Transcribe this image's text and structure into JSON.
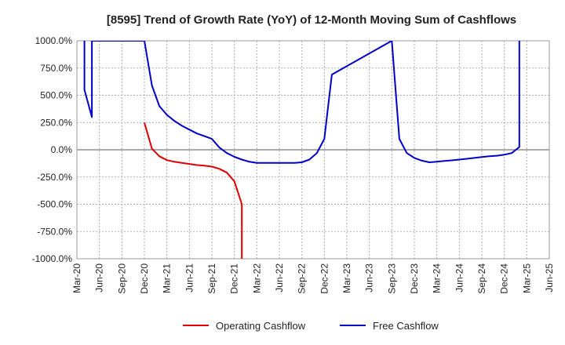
{
  "chart_data": {
    "type": "line",
    "title": "[8595]  Trend of Growth Rate (YoY) of 12-Month Moving Sum of Cashflows",
    "xlabel": "",
    "ylabel": "",
    "ylim": [
      -1000,
      1000
    ],
    "yticks": [
      {
        "value": 1000,
        "label": "1000.0%"
      },
      {
        "value": 750,
        "label": "750.0%"
      },
      {
        "value": 500,
        "label": "500.0%"
      },
      {
        "value": 250,
        "label": "250.0%"
      },
      {
        "value": 0,
        "label": "0.0%"
      },
      {
        "value": -250,
        "label": "-250.0%"
      },
      {
        "value": -500,
        "label": "-500.0%"
      },
      {
        "value": -750,
        "label": "-750.0%"
      },
      {
        "value": -1000,
        "label": "-1000.0%"
      }
    ],
    "xticks": [
      "Mar-20",
      "Jun-20",
      "Sep-20",
      "Dec-20",
      "Mar-21",
      "Jun-21",
      "Sep-21",
      "Dec-21",
      "Mar-22",
      "Jun-22",
      "Sep-22",
      "Dec-22",
      "Mar-23",
      "Jun-23",
      "Sep-23",
      "Dec-23",
      "Mar-24",
      "Jun-24",
      "Sep-24",
      "Dec-24",
      "Mar-25",
      "Jun-25"
    ],
    "grid": true,
    "legend_position": "bottom",
    "series": [
      {
        "name": "Operating Cashflow",
        "color": "#e00000",
        "points": [
          [
            "Dec-20",
            250
          ],
          [
            "Jan-21",
            10
          ],
          [
            "Feb-21",
            -60
          ],
          [
            "Mar-21",
            -95
          ],
          [
            "Apr-21",
            -110
          ],
          [
            "May-21",
            -120
          ],
          [
            "Jun-21",
            -130
          ],
          [
            "Jul-21",
            -140
          ],
          [
            "Aug-21",
            -145
          ],
          [
            "Sep-21",
            -155
          ],
          [
            "Oct-21",
            -175
          ],
          [
            "Nov-21",
            -210
          ],
          [
            "Dec-21",
            -290
          ],
          [
            "Jan-22",
            -500
          ],
          [
            "Jan-22",
            -1000
          ]
        ]
      },
      {
        "name": "Free Cashflow",
        "color": "#0000cc",
        "points": [
          [
            "Apr-20",
            1000
          ],
          [
            "Apr-20",
            550
          ],
          [
            "May-20",
            300
          ],
          [
            "May-20",
            1000
          ],
          [
            "Dec-20",
            1000
          ],
          [
            "Jan-21",
            590
          ],
          [
            "Feb-21",
            400
          ],
          [
            "Mar-21",
            320
          ],
          [
            "Apr-21",
            265
          ],
          [
            "May-21",
            220
          ],
          [
            "Jun-21",
            185
          ],
          [
            "Jul-21",
            150
          ],
          [
            "Aug-21",
            125
          ],
          [
            "Sep-21",
            100
          ],
          [
            "Oct-21",
            20
          ],
          [
            "Nov-21",
            -30
          ],
          [
            "Dec-21",
            -65
          ],
          [
            "Jan-22",
            -90
          ],
          [
            "Feb-22",
            -110
          ],
          [
            "Mar-22",
            -120
          ],
          [
            "Apr-22",
            -120
          ],
          [
            "May-22",
            -120
          ],
          [
            "Jun-22",
            -120
          ],
          [
            "Jul-22",
            -120
          ],
          [
            "Aug-22",
            -120
          ],
          [
            "Sep-22",
            -115
          ],
          [
            "Oct-22",
            -90
          ],
          [
            "Nov-22",
            -30
          ],
          [
            "Dec-22",
            100
          ],
          [
            "Jan-23",
            690
          ],
          [
            "Sep-23",
            1000
          ],
          [
            "Oct-23",
            100
          ],
          [
            "Nov-23",
            -30
          ],
          [
            "Dec-23",
            -75
          ],
          [
            "Jan-24",
            -100
          ],
          [
            "Feb-24",
            -115
          ],
          [
            "Mar-24",
            -110
          ],
          [
            "Apr-24",
            -103
          ],
          [
            "May-24",
            -97
          ],
          [
            "Jun-24",
            -90
          ],
          [
            "Jul-24",
            -83
          ],
          [
            "Aug-24",
            -75
          ],
          [
            "Sep-24",
            -67
          ],
          [
            "Oct-24",
            -60
          ],
          [
            "Nov-24",
            -55
          ],
          [
            "Dec-24",
            -45
          ],
          [
            "Jan-25",
            -30
          ],
          [
            "Feb-25",
            25
          ],
          [
            "Feb-25",
            1000
          ]
        ]
      }
    ]
  }
}
